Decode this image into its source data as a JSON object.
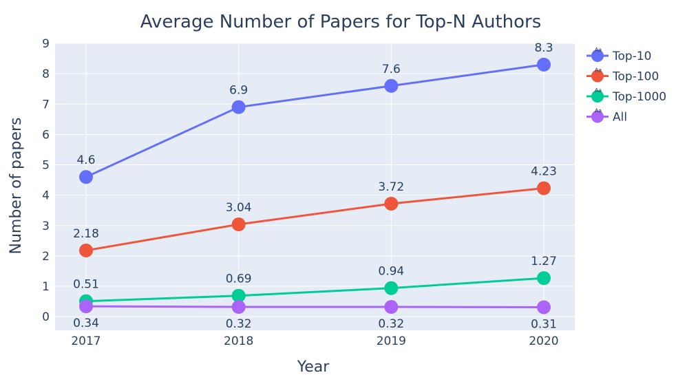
{
  "chart_data": {
    "type": "line",
    "title": "Average Number of Papers for Top-N Authors",
    "xlabel": "Year",
    "ylabel": "Number of papers",
    "categories": [
      "2017",
      "2018",
      "2019",
      "2020"
    ],
    "ylim": [
      -0.45,
      9
    ],
    "yticks": [
      0,
      1,
      2,
      3,
      4,
      5,
      6,
      7,
      8,
      9
    ],
    "grid": true,
    "legend_position": "right",
    "legend_marker_text": "Aa",
    "series": [
      {
        "name": "Top-10",
        "color": "#636efa",
        "values": [
          4.6,
          6.9,
          7.6,
          8.3
        ],
        "labels": [
          "4.6",
          "6.9",
          "7.6",
          "8.3"
        ],
        "label_position": "above"
      },
      {
        "name": "Top-100",
        "color": "#ef553b",
        "values": [
          2.18,
          3.04,
          3.72,
          4.23
        ],
        "labels": [
          "2.18",
          "3.04",
          "3.72",
          "4.23"
        ],
        "label_position": "above"
      },
      {
        "name": "Top-1000",
        "color": "#00cc96",
        "values": [
          0.51,
          0.69,
          0.94,
          1.27
        ],
        "labels": [
          "0.51",
          "0.69",
          "0.94",
          "1.27"
        ],
        "label_position": "above"
      },
      {
        "name": "All",
        "color": "#ab63fa",
        "values": [
          0.34,
          0.32,
          0.32,
          0.31
        ],
        "labels": [
          "0.34",
          "0.32",
          "0.32",
          "0.31"
        ],
        "label_position": "below"
      }
    ]
  }
}
